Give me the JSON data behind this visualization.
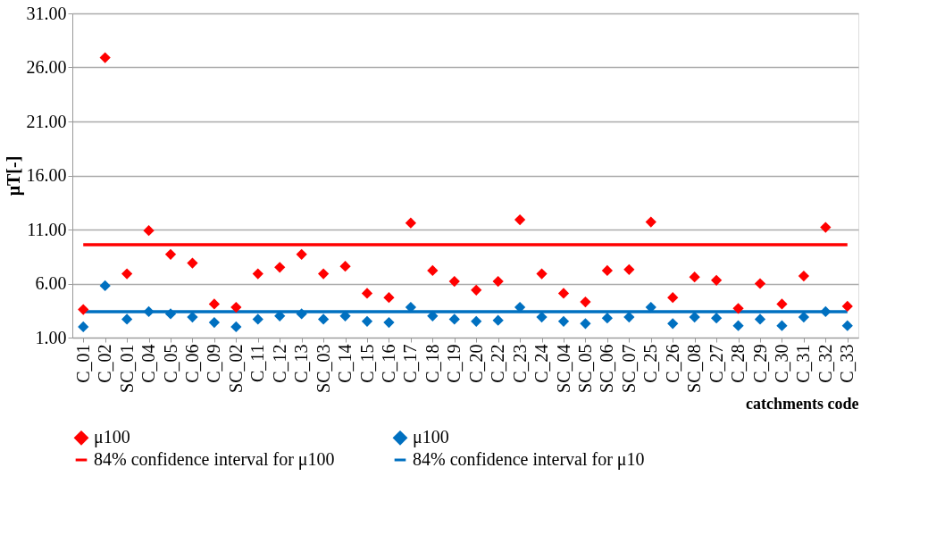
{
  "chart_data": {
    "type": "scatter",
    "xlabel": "catchments code",
    "ylabel": "μT[-]",
    "categories": [
      "C_01",
      "C_02",
      "SC_01",
      "C_04",
      "C_05",
      "C_06",
      "C_09",
      "SC_02",
      "C_11",
      "C_12",
      "C_13",
      "SC_03",
      "C_14",
      "C_15",
      "C_16",
      "C_17",
      "C_18",
      "C_19",
      "C_20",
      "C_22",
      "C_23",
      "C_24",
      "SC_04",
      "SC_05",
      "SC_06",
      "SC_07",
      "C_25",
      "C_26",
      "SC_08",
      "C_27",
      "C_28",
      "C_29",
      "C_30",
      "C_31",
      "C_32",
      "C_33"
    ],
    "series": [
      {
        "name": "μ100",
        "color": "#ff0000",
        "values": [
          3.6,
          26.9,
          6.9,
          10.9,
          8.7,
          7.9,
          4.1,
          3.8,
          6.9,
          7.5,
          8.7,
          6.9,
          7.6,
          5.1,
          4.7,
          11.6,
          7.2,
          6.2,
          5.4,
          6.2,
          11.9,
          6.9,
          5.1,
          4.3,
          7.2,
          7.3,
          11.7,
          4.7,
          6.6,
          6.3,
          3.7,
          6.0,
          4.1,
          6.7,
          11.2,
          3.9
        ]
      },
      {
        "name": "μ100",
        "color": "#0070c0",
        "values": [
          2.0,
          5.8,
          2.7,
          3.4,
          3.2,
          2.9,
          2.4,
          2.0,
          2.7,
          3.0,
          3.2,
          2.7,
          3.0,
          2.5,
          2.4,
          3.8,
          3.0,
          2.7,
          2.5,
          2.6,
          3.8,
          2.9,
          2.5,
          2.3,
          2.8,
          2.9,
          3.8,
          2.3,
          2.9,
          2.8,
          2.1,
          2.7,
          2.1,
          2.9,
          3.4,
          2.1
        ]
      }
    ],
    "ref_lines": [
      {
        "axis": "y",
        "value": 9.6,
        "label": "84% confidence interval for μ100",
        "color": "#ff0000"
      },
      {
        "axis": "y",
        "value": 3.4,
        "label": "84% confidence interval for μ10",
        "color": "#0070c0"
      }
    ],
    "marker": "diamond",
    "ylim": [
      1,
      31
    ],
    "yticks": [
      {
        "value": 1,
        "label": "1.00"
      },
      {
        "value": 6,
        "label": "6.00"
      },
      {
        "value": 11,
        "label": "11.00"
      },
      {
        "value": 16,
        "label": "16.00"
      },
      {
        "value": 21,
        "label": "21.00"
      },
      {
        "value": 26,
        "label": "26.00"
      },
      {
        "value": 31,
        "label": "31.00"
      }
    ],
    "grid": "y",
    "legend": "bottom"
  }
}
